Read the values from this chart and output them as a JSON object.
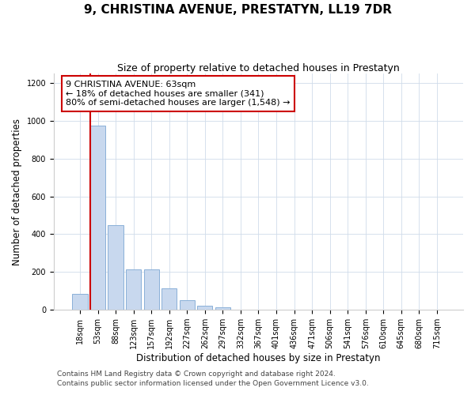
{
  "title": "9, CHRISTINA AVENUE, PRESTATYN, LL19 7DR",
  "subtitle": "Size of property relative to detached houses in Prestatyn",
  "xlabel": "Distribution of detached houses by size in Prestatyn",
  "ylabel": "Number of detached properties",
  "bar_labels": [
    "18sqm",
    "53sqm",
    "88sqm",
    "123sqm",
    "157sqm",
    "192sqm",
    "227sqm",
    "262sqm",
    "297sqm",
    "332sqm",
    "367sqm",
    "401sqm",
    "436sqm",
    "471sqm",
    "506sqm",
    "541sqm",
    "576sqm",
    "610sqm",
    "645sqm",
    "680sqm",
    "715sqm"
  ],
  "bar_heights": [
    85,
    975,
    450,
    215,
    215,
    115,
    50,
    20,
    15,
    0,
    0,
    0,
    0,
    0,
    0,
    0,
    0,
    0,
    0,
    0,
    0
  ],
  "bar_color": "#c8d8ee",
  "bar_edge_color": "#8ab0d8",
  "annotation_text": "9 CHRISTINA AVENUE: 63sqm\n← 18% of detached houses are smaller (341)\n80% of semi-detached houses are larger (1,548) →",
  "annotation_box_color": "#ffffff",
  "annotation_box_edge": "#cc0000",
  "redline_color": "#cc0000",
  "ylim": [
    0,
    1250
  ],
  "yticks": [
    0,
    200,
    400,
    600,
    800,
    1000,
    1200
  ],
  "footer1": "Contains HM Land Registry data © Crown copyright and database right 2024.",
  "footer2": "Contains public sector information licensed under the Open Government Licence v3.0.",
  "title_fontsize": 11,
  "subtitle_fontsize": 9,
  "axis_label_fontsize": 8.5,
  "tick_fontsize": 7,
  "annotation_fontsize": 8,
  "footer_fontsize": 6.5,
  "grid_color": "#d0dcea",
  "redline_x": 0.575
}
